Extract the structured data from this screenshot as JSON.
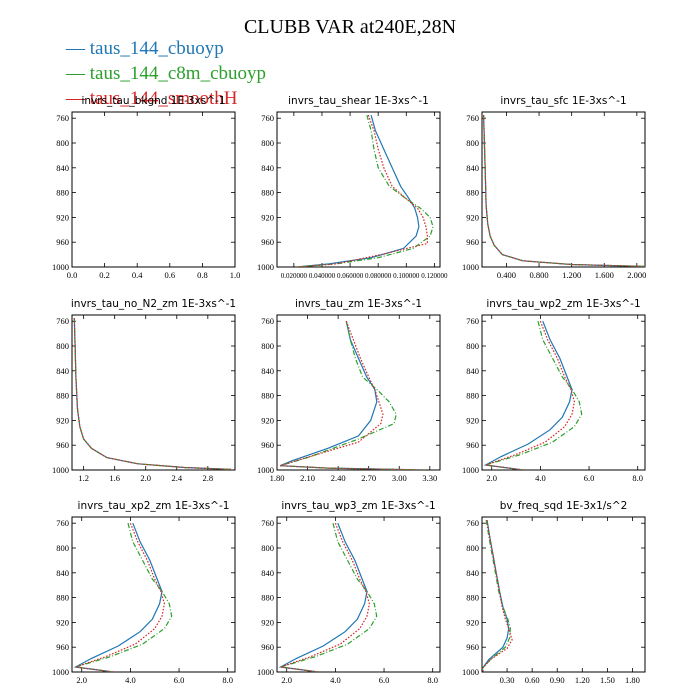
{
  "figure": {
    "title": "CLUBB VAR at240E,28N",
    "legend": [
      {
        "label": "taus_144_cbuoyp",
        "color": "#1f77b4",
        "style": "solid"
      },
      {
        "label": "taus_144_c8m_cbuoyp",
        "color": "#2ca02c",
        "style": "dashdot"
      },
      {
        "label": "taus_144_smoothH",
        "color": "#d62728",
        "style": "dotted"
      }
    ]
  },
  "chart_data": [
    {
      "type": "line",
      "title": "invrs_tau_bkgnd",
      "units": "1E-3xs^-1",
      "xlim": [
        0.0,
        1.0
      ],
      "ylim": [
        1000,
        750
      ],
      "xticks": [
        "0.0",
        "0.2",
        "0.4",
        "0.6",
        "0.8",
        "1.0"
      ],
      "xtick_values": [
        0,
        0.2,
        0.4,
        0.6,
        0.8,
        1.0
      ],
      "yticks": [
        "760",
        "800",
        "840",
        "880",
        "920",
        "960",
        "1000"
      ],
      "ytick_values": [
        760,
        800,
        840,
        880,
        920,
        960,
        1000
      ],
      "ylabel": "",
      "series": []
    },
    {
      "type": "line",
      "title": "invrs_tau_shear",
      "units": "1E-3xs^-1",
      "xlim": [
        0.008,
        0.124
      ],
      "ylim": [
        1000,
        750
      ],
      "xticks": [
        "0.020000",
        "0.040000",
        "0.060000",
        "0.080000",
        "0.100000",
        "0.120000"
      ],
      "xtick_values": [
        0.02,
        0.04,
        0.06,
        0.08,
        0.1,
        0.12
      ],
      "yticks": [
        "760",
        "800",
        "840",
        "880",
        "920",
        "960",
        "1000"
      ],
      "ytick_values": [
        760,
        800,
        840,
        880,
        920,
        960,
        1000
      ],
      "ylabel": "",
      "series": [
        {
          "name": "taus_144_cbuoyp",
          "x": [
            0.075,
            0.078,
            0.084,
            0.09,
            0.096,
            0.102,
            0.106,
            0.108,
            0.109,
            0.107,
            0.098,
            0.075,
            0.045,
            0.022
          ],
          "y": [
            755,
            780,
            810,
            840,
            870,
            890,
            905,
            920,
            935,
            950,
            970,
            985,
            995,
            1000
          ]
        },
        {
          "name": "taus_144_c8m_cbuoyp",
          "x": [
            0.072,
            0.075,
            0.077,
            0.08,
            0.088,
            0.1,
            0.11,
            0.117,
            0.119,
            0.117,
            0.105,
            0.08,
            0.05,
            0.022
          ],
          "y": [
            755,
            780,
            810,
            840,
            870,
            890,
            905,
            920,
            935,
            950,
            970,
            985,
            995,
            1000
          ]
        },
        {
          "name": "taus_144_smoothH",
          "x": [
            0.073,
            0.077,
            0.08,
            0.084,
            0.09,
            0.1,
            0.108,
            0.112,
            0.114,
            0.115,
            0.115,
            0.082,
            0.05,
            0.022
          ],
          "y": [
            755,
            780,
            810,
            840,
            870,
            890,
            905,
            920,
            935,
            950,
            962,
            980,
            995,
            1000
          ]
        }
      ]
    },
    {
      "type": "line",
      "title": "invrs_tau_sfc",
      "units": "1E-3xs^-1",
      "xlim": [
        0.1,
        2.1
      ],
      "ylim": [
        1000,
        750
      ],
      "xticks": [
        "0.400",
        "0.800",
        "1.200",
        "1.600",
        "2.000"
      ],
      "xtick_values": [
        0.4,
        0.8,
        1.2,
        1.6,
        2.0
      ],
      "yticks": [
        "760",
        "800",
        "840",
        "880",
        "920",
        "960",
        "1000"
      ],
      "ytick_values": [
        760,
        800,
        840,
        880,
        920,
        960,
        1000
      ],
      "ylabel": "",
      "series": [
        {
          "name": "taus_144_cbuoyp",
          "x": [
            0.12,
            0.13,
            0.14,
            0.15,
            0.17,
            0.2,
            0.25,
            0.35,
            0.6,
            1.2,
            2.1
          ],
          "y": [
            755,
            800,
            850,
            900,
            930,
            950,
            965,
            980,
            990,
            996,
            999
          ]
        },
        {
          "name": "taus_144_c8m_cbuoyp",
          "x": [
            0.12,
            0.13,
            0.14,
            0.15,
            0.17,
            0.2,
            0.25,
            0.35,
            0.6,
            1.2,
            2.1
          ],
          "y": [
            755,
            800,
            850,
            900,
            930,
            950,
            965,
            980,
            990,
            996,
            999
          ]
        },
        {
          "name": "taus_144_smoothH",
          "x": [
            0.12,
            0.13,
            0.14,
            0.15,
            0.17,
            0.2,
            0.25,
            0.35,
            0.6,
            1.2,
            2.1
          ],
          "y": [
            755,
            800,
            850,
            900,
            930,
            950,
            965,
            980,
            990,
            996,
            999
          ]
        }
      ]
    },
    {
      "type": "line",
      "title": "invrs_tau_no_N2_zm",
      "units": "1E-3xs^-1",
      "xlim": [
        1.05,
        3.15
      ],
      "ylim": [
        1000,
        750
      ],
      "xticks": [
        "1.2",
        "1.6",
        "2.0",
        "2.4",
        "2.8"
      ],
      "xtick_values": [
        1.2,
        1.6,
        2.0,
        2.4,
        2.8
      ],
      "yticks": [
        "760",
        "800",
        "840",
        "880",
        "920",
        "960",
        "1000"
      ],
      "ytick_values": [
        760,
        800,
        840,
        880,
        920,
        960,
        1000
      ],
      "ylabel": "",
      "series": [
        {
          "name": "taus_144_cbuoyp",
          "x": [
            1.08,
            1.09,
            1.1,
            1.12,
            1.15,
            1.2,
            1.3,
            1.5,
            1.9,
            2.5,
            3.1
          ],
          "y": [
            755,
            800,
            850,
            900,
            930,
            950,
            965,
            980,
            990,
            996,
            999
          ]
        },
        {
          "name": "taus_144_c8m_cbuoyp",
          "x": [
            1.08,
            1.09,
            1.1,
            1.12,
            1.15,
            1.2,
            1.3,
            1.5,
            1.9,
            2.5,
            3.1
          ],
          "y": [
            755,
            800,
            850,
            900,
            930,
            950,
            965,
            980,
            990,
            996,
            999
          ]
        },
        {
          "name": "taus_144_smoothH",
          "x": [
            1.08,
            1.09,
            1.1,
            1.12,
            1.15,
            1.2,
            1.3,
            1.5,
            1.9,
            2.5,
            3.1
          ],
          "y": [
            755,
            800,
            850,
            900,
            930,
            950,
            965,
            980,
            990,
            996,
            999
          ]
        }
      ]
    },
    {
      "type": "line",
      "title": "invrs_tau_zm",
      "units": "1E-3xs^-1",
      "xlim": [
        1.8,
        3.4
      ],
      "ylim": [
        1000,
        750
      ],
      "xticks": [
        "1.80",
        "2.10",
        "2.40",
        "2.70",
        "3.00",
        "3.30"
      ],
      "xtick_values": [
        1.8,
        2.1,
        2.4,
        2.7,
        3.0,
        3.3
      ],
      "yticks": [
        "760",
        "800",
        "840",
        "880",
        "920",
        "960",
        "1000"
      ],
      "ytick_values": [
        760,
        800,
        840,
        880,
        920,
        960,
        1000
      ],
      "ylabel": "",
      "series": [
        {
          "name": "taus_144_cbuoyp",
          "x": [
            2.48,
            2.52,
            2.6,
            2.68,
            2.76,
            2.78,
            2.72,
            2.6,
            2.3,
            1.95,
            1.83,
            2.3,
            3.25
          ],
          "y": [
            760,
            790,
            820,
            850,
            870,
            890,
            920,
            945,
            965,
            985,
            993,
            997,
            1000
          ]
        },
        {
          "name": "taus_144_c8m_cbuoyp",
          "x": [
            2.48,
            2.52,
            2.57,
            2.64,
            2.78,
            2.9,
            2.97,
            2.95,
            2.6,
            2.1,
            1.83,
            2.3,
            3.25
          ],
          "y": [
            760,
            790,
            820,
            850,
            870,
            890,
            910,
            925,
            950,
            980,
            993,
            997,
            1000
          ]
        },
        {
          "name": "taus_144_smoothH",
          "x": [
            2.48,
            2.55,
            2.62,
            2.7,
            2.76,
            2.8,
            2.84,
            2.82,
            2.6,
            2.05,
            1.83,
            2.3,
            3.25
          ],
          "y": [
            760,
            790,
            820,
            850,
            870,
            890,
            910,
            925,
            955,
            982,
            993,
            997,
            1000
          ]
        }
      ]
    },
    {
      "type": "line",
      "title": "invrs_tau_wp2_zm",
      "units": "1E-3xs^-1",
      "xlim": [
        1.6,
        8.3
      ],
      "ylim": [
        1000,
        750
      ],
      "xticks": [
        "2.0",
        "4.0",
        "6.0",
        "8.0"
      ],
      "xtick_values": [
        2,
        4,
        6,
        8
      ],
      "yticks": [
        "760",
        "800",
        "840",
        "880",
        "920",
        "960",
        "1000"
      ],
      "ytick_values": [
        760,
        800,
        840,
        880,
        920,
        960,
        1000
      ],
      "ylabel": "",
      "series": [
        {
          "name": "taus_144_cbuoyp",
          "x": [
            4.1,
            4.4,
            4.8,
            5.1,
            5.3,
            5.2,
            4.9,
            4.4,
            3.5,
            2.4,
            1.75,
            3.3
          ],
          "y": [
            760,
            790,
            820,
            850,
            870,
            890,
            915,
            935,
            958,
            978,
            992,
            1000
          ]
        },
        {
          "name": "taus_144_c8m_cbuoyp",
          "x": [
            3.9,
            4.1,
            4.5,
            4.9,
            5.3,
            5.6,
            5.7,
            5.4,
            4.5,
            3.2,
            1.75,
            3.3
          ],
          "y": [
            760,
            790,
            820,
            850,
            870,
            890,
            910,
            930,
            955,
            975,
            992,
            1000
          ]
        },
        {
          "name": "taus_144_smoothH",
          "x": [
            4.0,
            4.3,
            4.7,
            5.0,
            5.25,
            5.4,
            5.3,
            5.0,
            4.2,
            3.0,
            1.75,
            3.3
          ],
          "y": [
            760,
            790,
            820,
            850,
            870,
            890,
            910,
            930,
            955,
            975,
            992,
            1000
          ]
        }
      ]
    },
    {
      "type": "line",
      "title": "invrs_tau_xp2_zm",
      "units": "1E-3xs^-1",
      "xlim": [
        1.6,
        8.3
      ],
      "ylim": [
        1000,
        750
      ],
      "xticks": [
        "2.0",
        "4.0",
        "6.0",
        "8.0"
      ],
      "xtick_values": [
        2,
        4,
        6,
        8
      ],
      "yticks": [
        "760",
        "800",
        "840",
        "880",
        "920",
        "960",
        "1000"
      ],
      "ytick_values": [
        760,
        800,
        840,
        880,
        920,
        960,
        1000
      ],
      "ylabel": "",
      "series": [
        {
          "name": "taus_144_cbuoyp",
          "x": [
            4.1,
            4.4,
            4.8,
            5.1,
            5.3,
            5.2,
            4.9,
            4.4,
            3.5,
            2.4,
            1.75,
            3.3
          ],
          "y": [
            760,
            790,
            820,
            850,
            870,
            890,
            915,
            935,
            958,
            978,
            992,
            1000
          ]
        },
        {
          "name": "taus_144_c8m_cbuoyp",
          "x": [
            3.9,
            4.1,
            4.5,
            4.9,
            5.3,
            5.6,
            5.7,
            5.4,
            4.5,
            3.2,
            1.75,
            3.3
          ],
          "y": [
            760,
            790,
            820,
            850,
            870,
            890,
            910,
            930,
            955,
            975,
            992,
            1000
          ]
        },
        {
          "name": "taus_144_smoothH",
          "x": [
            4.0,
            4.3,
            4.7,
            5.0,
            5.25,
            5.4,
            5.3,
            5.0,
            4.2,
            3.0,
            1.75,
            3.3
          ],
          "y": [
            760,
            790,
            820,
            850,
            870,
            890,
            910,
            930,
            955,
            975,
            992,
            1000
          ]
        }
      ]
    },
    {
      "type": "line",
      "title": "invrs_tau_wp3_zm",
      "units": "1E-3xs^-1",
      "xlim": [
        1.6,
        8.3
      ],
      "ylim": [
        1000,
        750
      ],
      "xticks": [
        "2.0",
        "4.0",
        "6.0",
        "8.0"
      ],
      "xtick_values": [
        2,
        4,
        6,
        8
      ],
      "yticks": [
        "760",
        "800",
        "840",
        "880",
        "920",
        "960",
        "1000"
      ],
      "ytick_values": [
        760,
        800,
        840,
        880,
        920,
        960,
        1000
      ],
      "ylabel": "",
      "series": [
        {
          "name": "taus_144_cbuoyp",
          "x": [
            4.1,
            4.4,
            4.8,
            5.1,
            5.3,
            5.2,
            4.9,
            4.4,
            3.5,
            2.4,
            1.75,
            3.3
          ],
          "y": [
            760,
            790,
            820,
            850,
            870,
            890,
            915,
            935,
            958,
            978,
            992,
            1000
          ]
        },
        {
          "name": "taus_144_c8m_cbuoyp",
          "x": [
            3.9,
            4.1,
            4.5,
            4.9,
            5.3,
            5.6,
            5.7,
            5.4,
            4.5,
            3.2,
            1.75,
            3.3
          ],
          "y": [
            760,
            790,
            820,
            850,
            870,
            890,
            910,
            930,
            955,
            975,
            992,
            1000
          ]
        },
        {
          "name": "taus_144_smoothH",
          "x": [
            4.0,
            4.3,
            4.7,
            5.0,
            5.25,
            5.4,
            5.3,
            5.0,
            4.2,
            3.0,
            1.75,
            3.3
          ],
          "y": [
            760,
            790,
            820,
            850,
            870,
            890,
            910,
            930,
            955,
            975,
            992,
            1000
          ]
        }
      ]
    },
    {
      "type": "line",
      "title": "bv_freq_sqd",
      "units": "1E-3x1/s^2",
      "xlim": [
        0.0,
        1.95
      ],
      "ylim": [
        1000,
        750
      ],
      "xticks": [
        "0.30",
        "0.60",
        "0.90",
        "1.20",
        "1.50",
        "1.80"
      ],
      "xtick_values": [
        0.3,
        0.6,
        0.9,
        1.2,
        1.5,
        1.8
      ],
      "yticks": [
        "760",
        "800",
        "840",
        "880",
        "920",
        "960",
        "1000"
      ],
      "ytick_values": [
        760,
        800,
        840,
        880,
        920,
        960,
        1000
      ],
      "ylabel": "",
      "series": [
        {
          "name": "taus_144_cbuoyp",
          "x": [
            0.06,
            0.09,
            0.13,
            0.17,
            0.21,
            0.25,
            0.3,
            0.32,
            0.3,
            0.25,
            0.08,
            0.0,
            0.02
          ],
          "y": [
            755,
            780,
            810,
            840,
            870,
            895,
            915,
            930,
            945,
            960,
            980,
            995,
            1000
          ]
        },
        {
          "name": "taus_144_c8m_cbuoyp",
          "x": [
            0.05,
            0.08,
            0.12,
            0.16,
            0.2,
            0.25,
            0.31,
            0.34,
            0.33,
            0.28,
            0.1,
            0.0,
            0.02
          ],
          "y": [
            755,
            780,
            810,
            840,
            870,
            895,
            915,
            930,
            945,
            960,
            980,
            995,
            1000
          ]
        },
        {
          "name": "taus_144_smoothH",
          "x": [
            0.06,
            0.09,
            0.13,
            0.17,
            0.21,
            0.24,
            0.28,
            0.32,
            0.36,
            0.3,
            0.1,
            0.0,
            0.02
          ],
          "y": [
            755,
            780,
            810,
            840,
            870,
            895,
            915,
            930,
            948,
            962,
            980,
            995,
            1000
          ]
        }
      ]
    }
  ]
}
